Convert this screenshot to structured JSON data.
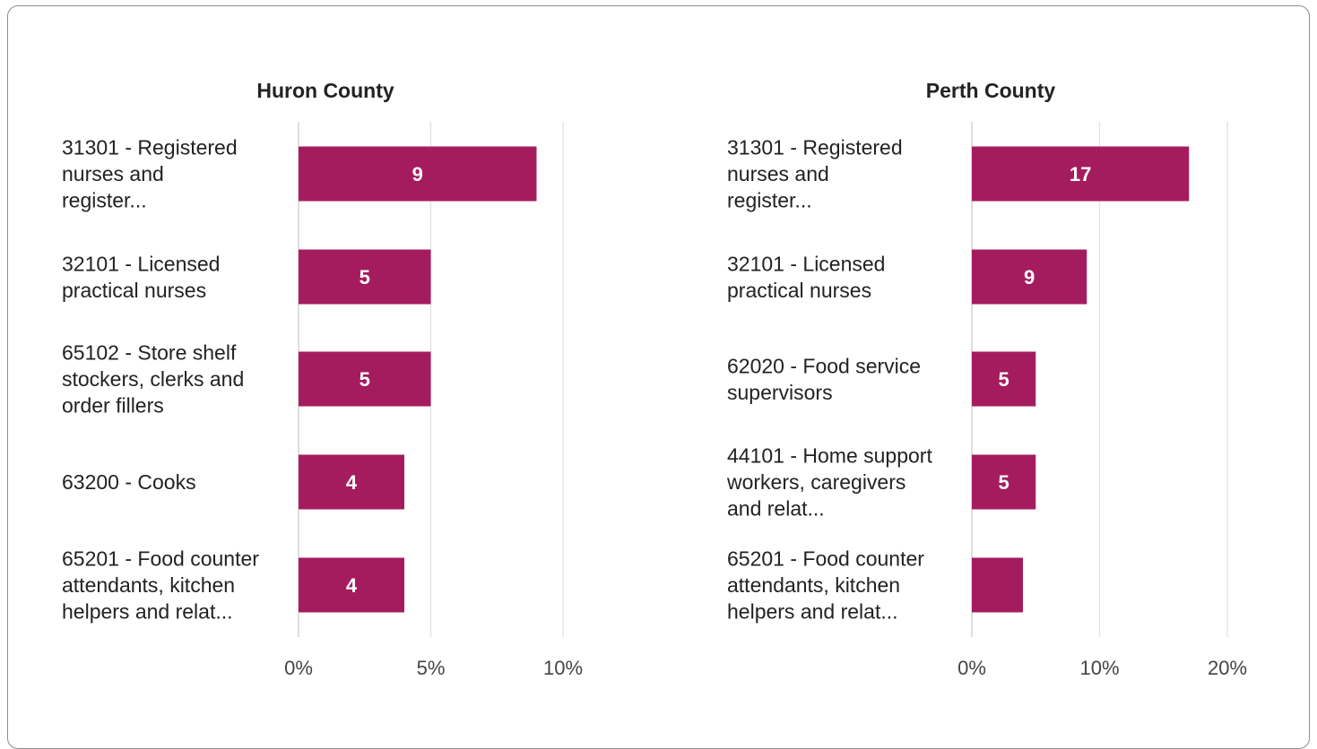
{
  "colors": {
    "bar": "#a51c5e",
    "grid": "#e2e2e2",
    "axis": "#cccccc"
  },
  "chart_data": [
    {
      "type": "bar",
      "orientation": "horizontal",
      "title": "Huron County",
      "categories": [
        [
          "31301 - Registered",
          "nurses and",
          "register..."
        ],
        [
          "32101 - Licensed",
          "practical nurses"
        ],
        [
          "65102 - Store shelf",
          "stockers, clerks and",
          "order fillers"
        ],
        [
          "63200 - Cooks"
        ],
        [
          "65201 - Food counter",
          "attendants, kitchen",
          "helpers and relat..."
        ]
      ],
      "values": [
        9,
        5,
        5,
        4,
        4
      ],
      "data_labels": [
        "9",
        "5",
        "5",
        "4",
        "4"
      ],
      "xlim": [
        0,
        10
      ],
      "xticks": [
        0,
        5,
        10
      ],
      "xtick_labels": [
        "0%",
        "5%",
        "10%"
      ],
      "grid": true
    },
    {
      "type": "bar",
      "orientation": "horizontal",
      "title": "Perth County",
      "categories": [
        [
          "31301 - Registered",
          "nurses and",
          "register..."
        ],
        [
          "32101 - Licensed",
          "practical nurses"
        ],
        [
          "62020 - Food service",
          "supervisors"
        ],
        [
          "44101 - Home support",
          "workers, caregivers",
          "and relat..."
        ],
        [
          "65201 - Food counter",
          "attendants, kitchen",
          "helpers and relat..."
        ]
      ],
      "values": [
        17,
        9,
        5,
        5,
        4
      ],
      "data_labels": [
        "17",
        "9",
        "5",
        "5",
        ""
      ],
      "xlim": [
        0,
        20
      ],
      "xticks": [
        0,
        10,
        20
      ],
      "xtick_labels": [
        "0%",
        "10%",
        "20%"
      ],
      "grid": true
    }
  ]
}
